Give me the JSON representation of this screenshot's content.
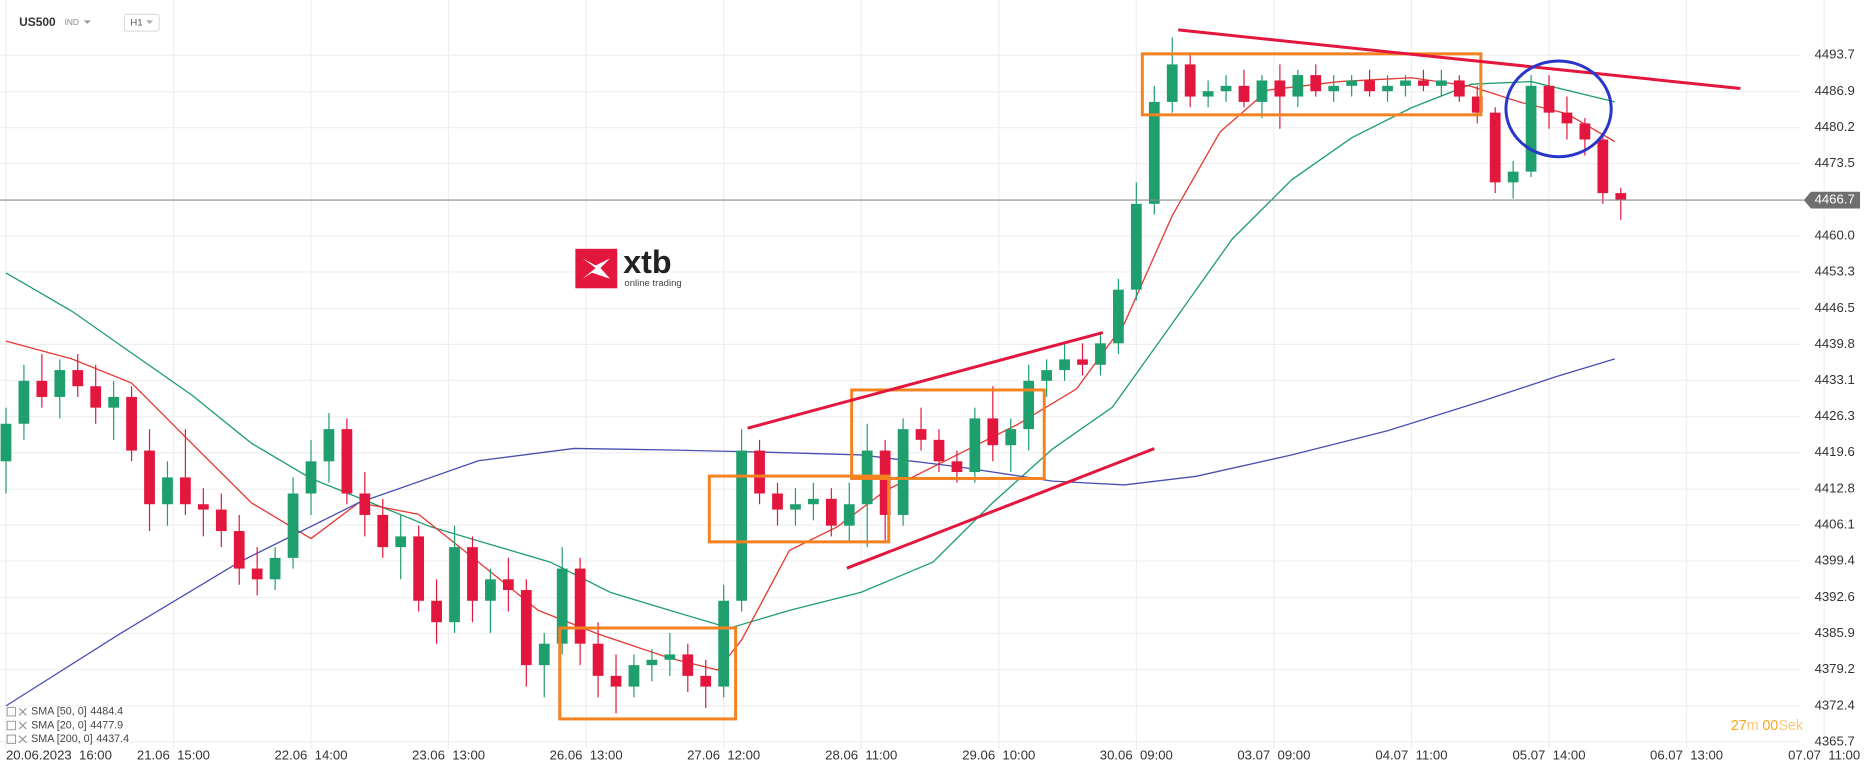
{
  "chart_data": {
    "type": "candlestick",
    "symbol": "US500",
    "market": "IND",
    "interval": "H1",
    "logo": {
      "name": "xtb",
      "tagline": "online trading"
    },
    "countdown": [
      "27",
      "m",
      "00",
      "Sek"
    ],
    "up_color": "#1f9e6e",
    "down_color": "#e3173e",
    "grid": true,
    "xlim": [
      0,
      312
    ],
    "ylim": [
      4364.4,
      4504.0
    ],
    "xticks": [
      {
        "value": 1,
        "label": "20.06.2023  16:00"
      },
      {
        "value": 29,
        "label": "21.06  15:00"
      },
      {
        "value": 52,
        "label": "22.06  14:00"
      },
      {
        "value": 75,
        "label": "23.06  13:00"
      },
      {
        "value": 98,
        "label": "26.06  13:00"
      },
      {
        "value": 121,
        "label": "27.06  12:00"
      },
      {
        "value": 144,
        "label": "28.06  11:00"
      },
      {
        "value": 167,
        "label": "29.06  10:00"
      },
      {
        "value": 190,
        "label": "30.06  09:00"
      },
      {
        "value": 213,
        "label": "03.07  09:00"
      },
      {
        "value": 236,
        "label": "04.07  11:00"
      },
      {
        "value": 259,
        "label": "05.07  14:00"
      },
      {
        "value": 282,
        "label": "06.07  13:00"
      },
      {
        "value": 305,
        "label": "07.07  11:00"
      }
    ],
    "yticks": [
      4493.7,
      4486.9,
      4480.2,
      4473.5,
      {
        "value": 4460,
        "label": "4460.0"
      },
      4453.3,
      4446.5,
      4439.8,
      4433.1,
      4426.3,
      4419.6,
      4412.8,
      4406.1,
      4399.4,
      4392.6,
      4385.9,
      4379.2,
      4372.4,
      4365.7
    ],
    "last_price": 4466.7,
    "x": [
      1,
      4,
      7,
      10,
      13,
      16,
      19,
      22,
      25,
      28,
      31,
      34,
      37,
      40,
      43,
      46,
      49,
      52,
      55,
      58,
      61,
      64,
      67,
      70,
      73,
      76,
      79,
      82,
      85,
      88,
      91,
      94,
      97,
      100,
      103,
      106,
      109,
      112,
      115,
      118,
      121,
      124,
      127,
      130,
      133,
      136,
      139,
      142,
      145,
      148,
      151,
      154,
      157,
      160,
      163,
      166,
      169,
      172,
      175,
      178,
      181,
      184,
      187,
      190,
      193,
      196,
      199,
      202,
      205,
      208,
      211,
      214,
      217,
      220,
      223,
      226,
      229,
      232,
      235,
      238,
      241,
      244,
      247,
      250,
      253,
      256,
      259,
      262,
      265,
      268,
      271
    ],
    "ohlc": [
      [
        4418,
        4428,
        4412,
        4425
      ],
      [
        4425,
        4436,
        4422,
        4433
      ],
      [
        4433,
        4438,
        4428,
        4430
      ],
      [
        4430,
        4437,
        4426,
        4435
      ],
      [
        4435,
        4438,
        4430,
        4432
      ],
      [
        4432,
        4436,
        4425,
        4428
      ],
      [
        4428,
        4433,
        4422,
        4430
      ],
      [
        4430,
        4432,
        4418,
        4420
      ],
      [
        4420,
        4424,
        4405,
        4410
      ],
      [
        4410,
        4418,
        4406,
        4415
      ],
      [
        4415,
        4424,
        4408,
        4410
      ],
      [
        4410,
        4413,
        4404,
        4409
      ],
      [
        4409,
        4412,
        4402,
        4405
      ],
      [
        4405,
        4408,
        4395,
        4398
      ],
      [
        4398,
        4402,
        4393,
        4396
      ],
      [
        4396,
        4402,
        4394,
        4400
      ],
      [
        4400,
        4415,
        4398,
        4412
      ],
      [
        4412,
        4422,
        4408,
        4418
      ],
      [
        4418,
        4427,
        4414,
        4424
      ],
      [
        4424,
        4426,
        4410,
        4412
      ],
      [
        4412,
        4416,
        4404,
        4408
      ],
      [
        4408,
        4411,
        4400,
        4402
      ],
      [
        4402,
        4408,
        4396,
        4404
      ],
      [
        4404,
        4406,
        4390,
        4392
      ],
      [
        4392,
        4396,
        4384,
        4388
      ],
      [
        4388,
        4406,
        4386,
        4402
      ],
      [
        4402,
        4404,
        4388,
        4392
      ],
      [
        4392,
        4398,
        4386,
        4396
      ],
      [
        4396,
        4400,
        4390,
        4394
      ],
      [
        4394,
        4396,
        4376,
        4380
      ],
      [
        4380,
        4386,
        4374,
        4384
      ],
      [
        4384,
        4402,
        4382,
        4398
      ],
      [
        4398,
        4400,
        4380,
        4384
      ],
      [
        4384,
        4388,
        4374,
        4378
      ],
      [
        4378,
        4382,
        4371,
        4376
      ],
      [
        4376,
        4382,
        4374,
        4380
      ],
      [
        4380,
        4383,
        4377,
        4381
      ],
      [
        4381,
        4386,
        4378,
        4382
      ],
      [
        4382,
        4384,
        4375,
        4378
      ],
      [
        4378,
        4381,
        4372,
        4376
      ],
      [
        4376,
        4395,
        4374,
        4392
      ],
      [
        4392,
        4424,
        4390,
        4420
      ],
      [
        4420,
        4422,
        4410,
        4412
      ],
      [
        4412,
        4414,
        4406,
        4409
      ],
      [
        4409,
        4413,
        4406,
        4410
      ],
      [
        4410,
        4414,
        4407,
        4411
      ],
      [
        4411,
        4413,
        4404,
        4406
      ],
      [
        4406,
        4414,
        4403,
        4410
      ],
      [
        4410,
        4425,
        4402,
        4420
      ],
      [
        4420,
        4422,
        4403,
        4408
      ],
      [
        4408,
        4426,
        4406,
        4424
      ],
      [
        4424,
        4428,
        4420,
        4422
      ],
      [
        4422,
        4424,
        4416,
        4418
      ],
      [
        4418,
        4420,
        4414,
        4416
      ],
      [
        4416,
        4428,
        4414,
        4426
      ],
      [
        4426,
        4432,
        4418,
        4421
      ],
      [
        4421,
        4426,
        4416,
        4424
      ],
      [
        4424,
        4436,
        4420,
        4433
      ],
      [
        4433,
        4437,
        4430,
        4435
      ],
      [
        4435,
        4440,
        4433,
        4437
      ],
      [
        4437,
        4440,
        4434,
        4436
      ],
      [
        4436,
        4442,
        4434,
        4440
      ],
      [
        4440,
        4452,
        4438,
        4450
      ],
      [
        4450,
        4470,
        4448,
        4466
      ],
      [
        4466,
        4488,
        4464,
        4485
      ],
      [
        4485,
        4497,
        4483,
        4492
      ],
      [
        4492,
        4494,
        4484,
        4486
      ],
      [
        4486,
        4489,
        4484,
        4487
      ],
      [
        4487,
        4490,
        4485,
        4488
      ],
      [
        4488,
        4491,
        4484,
        4485
      ],
      [
        4485,
        4490,
        4482,
        4489
      ],
      [
        4489,
        4492,
        4480,
        4486
      ],
      [
        4486,
        4491,
        4484,
        4490
      ],
      [
        4490,
        4492,
        4486,
        4487
      ],
      [
        4487,
        4490,
        4485,
        4488
      ],
      [
        4488,
        4490,
        4486,
        4489
      ],
      [
        4489,
        4491,
        4486,
        4487
      ],
      [
        4487,
        4490,
        4485,
        4488
      ],
      [
        4488,
        4490,
        4486,
        4489
      ],
      [
        4489,
        4491,
        4487,
        4488
      ],
      [
        4488,
        4491,
        4486,
        4489
      ],
      [
        4489,
        4490,
        4485,
        4486
      ],
      [
        4486,
        4488,
        4481,
        4483
      ],
      [
        4483,
        4484,
        4468,
        4470
      ],
      [
        4470,
        4474,
        4467,
        4472
      ],
      [
        4472,
        4490,
        4471,
        4488
      ],
      [
        4488,
        4490,
        4480,
        4483
      ],
      [
        4483,
        4486,
        4478,
        4481
      ],
      [
        4481,
        4482,
        4475,
        4478
      ],
      [
        4478,
        4479,
        4466,
        4468
      ],
      [
        4468,
        4469,
        4463,
        4466.7
      ]
    ],
    "series": [
      {
        "name": "SMA [50, 0]",
        "last": 4484.4,
        "color": "#1f9e6e",
        "x": [
          1,
          12,
          22,
          32,
          42,
          52,
          62,
          72,
          82,
          92,
          102,
          112,
          122,
          132,
          144,
          156,
          166,
          176,
          186,
          196,
          206,
          216,
          226,
          236,
          246,
          256,
          270
        ],
        "values": [
          4453.1,
          4446.0,
          4438.2,
          4430.4,
          4421.4,
          4414.8,
          4410.3,
          4405.8,
          4402.5,
          4399.2,
          4393.6,
          4390.2,
          4386.9,
          4390.2,
          4393.6,
          4399.2,
          4410.3,
          4420.3,
          4428.1,
          4443.7,
          4459.4,
          4470.5,
          4478.3,
          4483.9,
          4488.3,
          4488.8,
          4485.0
        ]
      },
      {
        "name": "SMA [20, 0]",
        "last": 4477.9,
        "color": "#e53935",
        "x": [
          1,
          12,
          22,
          32,
          42,
          52,
          60,
          70,
          80,
          90,
          100,
          112,
          120,
          124,
          132,
          140,
          148,
          160,
          170,
          180,
          188,
          196,
          204,
          212,
          224,
          236,
          246,
          254,
          262,
          270
        ],
        "values": [
          4440.4,
          4437.1,
          4432.6,
          4421.4,
          4410.3,
          4403.6,
          4410.3,
          4408.1,
          4399.2,
          4390.2,
          4385.8,
          4381.3,
          4379.1,
          4384.7,
          4401.4,
          4405.8,
          4412.5,
          4419.2,
          4424.8,
          4431.5,
          4443.7,
          4463.8,
          4479.4,
          4487.2,
          4488.8,
          4489.5,
          4487.9,
          4485.0,
          4482.8,
          4477.6
        ]
      },
      {
        "name": "SMA [200, 0]",
        "last": 4437.4,
        "color": "#4a4fb0",
        "x": [
          1,
          20,
          40,
          60,
          80,
          96,
          112,
          128,
          144,
          160,
          176,
          188,
          200,
          216,
          232,
          248,
          260,
          270
        ],
        "values": [
          4372.4,
          4385.8,
          4399.2,
          4410.3,
          4418.1,
          4420.4,
          4420.1,
          4419.7,
          4419.2,
          4417.0,
          4414.3,
          4413.6,
          4415.2,
          4419.2,
          4423.7,
          4429.3,
          4433.7,
          4437.1
        ]
      }
    ]
  }
}
